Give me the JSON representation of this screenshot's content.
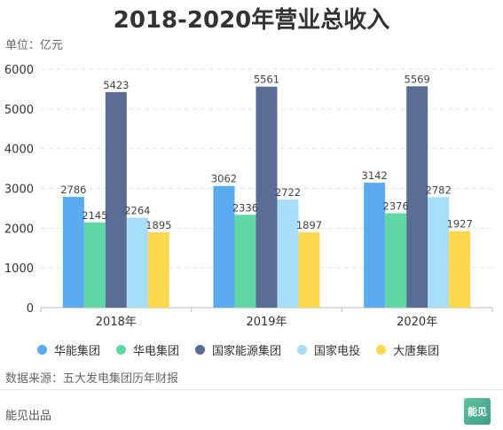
{
  "title": "2018-2020年营业总收入",
  "unit_label": "单位：亿元",
  "source": "数据来源：五大发电集团历年财报",
  "footer": "能见出品",
  "logo_text": "能见",
  "colors": {
    "华能集团": "#5aabf0",
    "华电集团": "#5fd8a6",
    "国家能源集团": "#5a6d94",
    "国家电投": "#a9def9",
    "大唐集团": "#fed84f"
  },
  "chart_data": {
    "type": "bar",
    "title": "2018-2020年营业总收入",
    "ylabel": "单位：亿元",
    "categories": [
      "2018年",
      "2019年",
      "2020年"
    ],
    "ylim": [
      0,
      6000
    ],
    "yticks": [
      0,
      1000,
      2000,
      3000,
      4000,
      5000,
      6000
    ],
    "grid": true,
    "legend": "bottom",
    "series": [
      {
        "name": "华能集团",
        "values": [
          2786,
          3062,
          3142
        ],
        "color": "#5aabf0"
      },
      {
        "name": "华电集团",
        "values": [
          2145,
          2336,
          2376
        ],
        "color": "#5fd8a6"
      },
      {
        "name": "国家能源集团",
        "values": [
          5423,
          5561,
          5569
        ],
        "color": "#5a6d94"
      },
      {
        "name": "国家电投",
        "values": [
          2264,
          2722,
          2782
        ],
        "color": "#a9def9"
      },
      {
        "name": "大唐集团",
        "values": [
          1895,
          1897,
          1927
        ],
        "color": "#fed84f"
      }
    ]
  }
}
